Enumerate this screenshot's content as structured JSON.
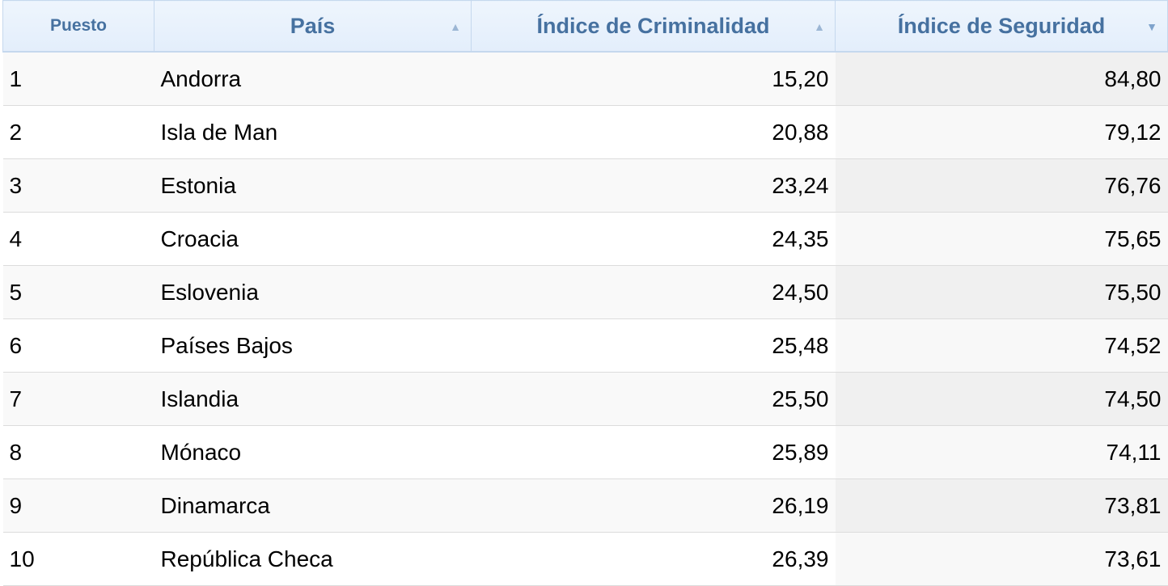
{
  "columns": [
    {
      "label": "Puesto",
      "sort": ""
    },
    {
      "label": "País",
      "sort": "▲"
    },
    {
      "label": "Índice de Criminalidad",
      "sort": "▲"
    },
    {
      "label": "Índice de Seguridad",
      "sort": "▼"
    }
  ],
  "rows": [
    [
      "1",
      "Andorra",
      "15,20",
      "84,80"
    ],
    [
      "2",
      "Isla de Man",
      "20,88",
      "79,12"
    ],
    [
      "3",
      "Estonia",
      "23,24",
      "76,76"
    ],
    [
      "4",
      "Croacia",
      "24,35",
      "75,65"
    ],
    [
      "5",
      "Eslovenia",
      "24,50",
      "75,50"
    ],
    [
      "6",
      "Países Bajos",
      "25,48",
      "74,52"
    ],
    [
      "7",
      "Islandia",
      "25,50",
      "74,50"
    ],
    [
      "8",
      "Mónaco",
      "25,89",
      "74,11"
    ],
    [
      "9",
      "Dinamarca",
      "26,19",
      "73,81"
    ],
    [
      "10",
      "República Checa",
      "26,39",
      "73,61"
    ]
  ]
}
